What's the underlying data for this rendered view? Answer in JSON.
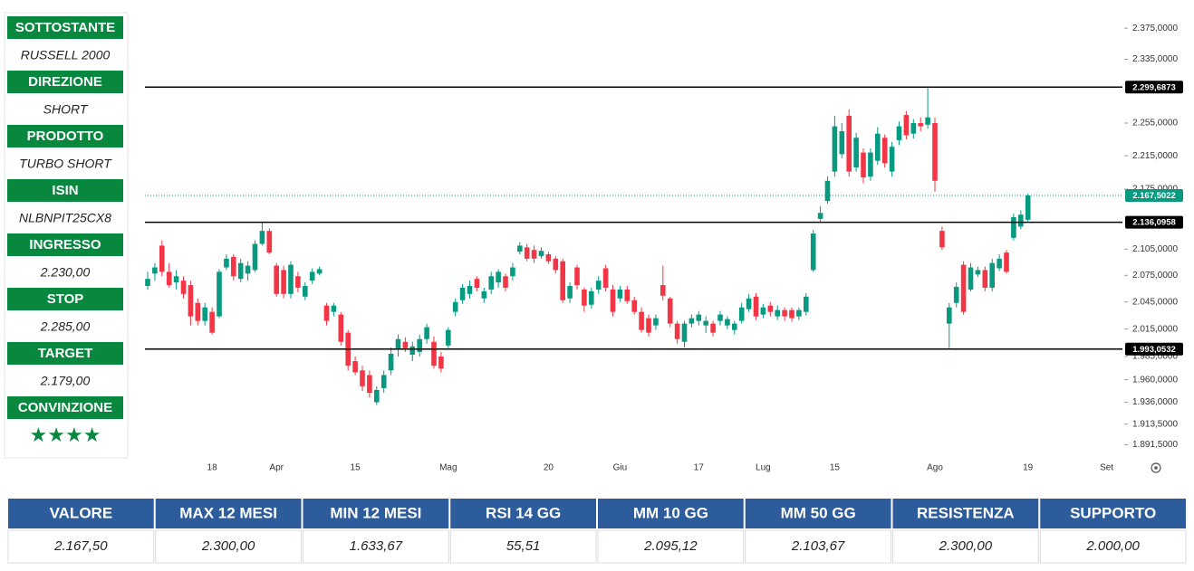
{
  "panel": [
    {
      "label": "SOTTOSTANTE",
      "value": "RUSSELL 2000"
    },
    {
      "label": "DIREZIONE",
      "value": "SHORT"
    },
    {
      "label": "PRODOTTO",
      "value": "TURBO SHORT"
    },
    {
      "label": "ISIN",
      "value": "NLBNPIT25CX8"
    },
    {
      "label": "INGRESSO",
      "value": "2.230,00"
    },
    {
      "label": "STOP",
      "value": "2.285,00"
    },
    {
      "label": "TARGET",
      "value": "2.179,00"
    },
    {
      "label": "CONVINZIONE",
      "value": "★★★★"
    }
  ],
  "chart_data": {
    "type": "candlestick",
    "up_color": "#089981",
    "down_color": "#f23645",
    "log_scale": true,
    "ylim": [
      1879,
      2394
    ],
    "yticks": [
      {
        "value": 2375,
        "label": "2.375,0000"
      },
      {
        "value": 2335,
        "label": "2.335,0000"
      },
      {
        "value": 2255,
        "label": "2.255,0000"
      },
      {
        "value": 2215,
        "label": "2.215,0000"
      },
      {
        "value": 2175,
        "label": "2.175,0000"
      },
      {
        "value": 2105,
        "label": "2.105,0000"
      },
      {
        "value": 2075,
        "label": "2.075,0000"
      },
      {
        "value": 2045,
        "label": "2.045,0000"
      },
      {
        "value": 2015,
        "label": "2.015,0000"
      },
      {
        "value": 1985,
        "label": "1.985,0000"
      },
      {
        "value": 1960,
        "label": "1.960,0000"
      },
      {
        "value": 1936,
        "label": "1.936,0000"
      },
      {
        "value": 1913,
        "label": "1.913,5000"
      },
      {
        "value": 1891.5,
        "label": "1.891,5000"
      }
    ],
    "hlines": [
      {
        "value": 2299.6873,
        "label": "2.299,6873",
        "color": "#000000",
        "style": "solid"
      },
      {
        "value": 2167.5022,
        "label": "2.167,5022",
        "color": "#089981",
        "style": "dotted"
      },
      {
        "value": 2136.0958,
        "label": "2.136,0958",
        "color": "#000000",
        "style": "solid"
      },
      {
        "value": 1993.0532,
        "label": "1.993,0532",
        "color": "#000000",
        "style": "solid"
      }
    ],
    "categories": [
      null,
      null,
      null,
      null,
      null,
      null,
      null,
      null,
      null,
      "18",
      null,
      null,
      null,
      null,
      null,
      null,
      null,
      null,
      "Apr",
      null,
      null,
      null,
      null,
      null,
      null,
      null,
      null,
      null,
      null,
      "15",
      null,
      null,
      null,
      null,
      null,
      null,
      null,
      null,
      null,
      null,
      null,
      null,
      "Mag",
      null,
      null,
      null,
      null,
      null,
      null,
      null,
      null,
      null,
      null,
      null,
      null,
      null,
      "20",
      null,
      null,
      null,
      null,
      null,
      null,
      null,
      null,
      null,
      "Giu",
      null,
      null,
      null,
      null,
      null,
      null,
      null,
      null,
      null,
      null,
      "17",
      null,
      null,
      null,
      null,
      null,
      null,
      null,
      null,
      "Lug",
      null,
      null,
      null,
      null,
      null,
      null,
      null,
      null,
      null,
      "15",
      null,
      null,
      null,
      null,
      null,
      null,
      null,
      null,
      null,
      null,
      null,
      null,
      null,
      "Ago",
      null,
      null,
      null,
      null,
      null,
      null,
      null,
      null,
      null,
      null,
      null,
      null,
      "19",
      null,
      null,
      null,
      null,
      null,
      null,
      null,
      null,
      null,
      null,
      "Set",
      null,
      null
    ],
    "candles": [
      [
        2063,
        2079,
        2059,
        2071
      ],
      [
        2077,
        2089,
        2069,
        2084
      ],
      [
        2109,
        2115,
        2074,
        2079
      ],
      [
        2079,
        2089,
        2061,
        2064
      ],
      [
        2067,
        2081,
        2059,
        2074
      ],
      [
        2069,
        2074,
        2049,
        2054
      ],
      [
        2064,
        2069,
        2019,
        2029
      ],
      [
        2044,
        2049,
        2019,
        2024
      ],
      [
        2024,
        2044,
        2019,
        2039
      ],
      [
        2034,
        2039,
        2009,
        2011
      ],
      [
        2029,
        2082,
        2027,
        2079
      ],
      [
        2084,
        2099,
        2081,
        2094
      ],
      [
        2096,
        2099,
        2069,
        2074
      ],
      [
        2071,
        2094,
        2067,
        2089
      ],
      [
        2077,
        2091,
        2069,
        2086
      ],
      [
        2081,
        2115,
        2079,
        2111
      ],
      [
        2111,
        2136,
        2109,
        2126
      ],
      [
        2126,
        2129,
        2099,
        2101
      ],
      [
        2086,
        2089,
        2051,
        2054
      ],
      [
        2081,
        2086,
        2049,
        2054
      ],
      [
        2054,
        2091,
        2049,
        2087
      ],
      [
        2074,
        2079,
        2056,
        2061
      ],
      [
        2051,
        2067,
        2047,
        2063
      ],
      [
        2069,
        2083,
        2065,
        2079
      ],
      [
        2077,
        2085,
        2075,
        2082
      ],
      [
        2041,
        2044,
        2019,
        2024
      ],
      [
        2034,
        2044,
        2029,
        2041
      ],
      [
        2031,
        2034,
        1997,
        2001
      ],
      [
        2011,
        2014,
        1970,
        1975
      ],
      [
        1980,
        1985,
        1965,
        1968
      ],
      [
        1970,
        1975,
        1948,
        1953
      ],
      [
        1965,
        1970,
        1941,
        1946
      ],
      [
        1936,
        1953,
        1933,
        1949
      ],
      [
        1951,
        1970,
        1946,
        1965
      ],
      [
        1970,
        1995,
        1965,
        1988
      ],
      [
        1993,
        2009,
        1985,
        2004
      ],
      [
        2001,
        2006,
        1990,
        1994
      ],
      [
        1987,
        2001,
        1980,
        1996
      ],
      [
        1990,
        2009,
        1985,
        2004
      ],
      [
        2004,
        2021,
        1999,
        2017
      ],
      [
        2001,
        2007,
        1972,
        1975
      ],
      [
        1985,
        1990,
        1968,
        1972
      ],
      [
        1997,
        2017,
        1994,
        2014
      ],
      [
        2034,
        2049,
        2029,
        2045
      ],
      [
        2047,
        2065,
        2043,
        2061
      ],
      [
        2054,
        2069,
        2049,
        2063
      ],
      [
        2071,
        2074,
        2057,
        2061
      ],
      [
        2049,
        2061,
        2044,
        2057
      ],
      [
        2059,
        2079,
        2054,
        2074
      ],
      [
        2067,
        2082,
        2061,
        2079
      ],
      [
        2074,
        2077,
        2057,
        2061
      ],
      [
        2074,
        2089,
        2069,
        2084
      ],
      [
        2102,
        2113,
        2099,
        2109
      ],
      [
        2107,
        2111,
        2091,
        2094
      ],
      [
        2104,
        2109,
        2089,
        2094
      ],
      [
        2097,
        2107,
        2094,
        2103
      ],
      [
        2099,
        2102,
        2088,
        2091
      ],
      [
        2094,
        2097,
        2077,
        2081
      ],
      [
        2091,
        2094,
        2044,
        2047
      ],
      [
        2049,
        2067,
        2044,
        2063
      ],
      [
        2084,
        2087,
        2059,
        2064
      ],
      [
        2059,
        2061,
        2034,
        2041
      ],
      [
        2042,
        2061,
        2038,
        2057
      ],
      [
        2059,
        2074,
        2054,
        2069
      ],
      [
        2083,
        2087,
        2057,
        2061
      ],
      [
        2059,
        2064,
        2029,
        2034
      ],
      [
        2049,
        2063,
        2045,
        2059
      ],
      [
        2059,
        2063,
        2043,
        2046
      ],
      [
        2047,
        2051,
        2031,
        2034
      ],
      [
        2034,
        2039,
        2011,
        2014
      ],
      [
        2027,
        2031,
        2007,
        2011
      ],
      [
        2019,
        2031,
        2014,
        2027
      ],
      [
        2064,
        2086,
        2047,
        2052
      ],
      [
        2049,
        2051,
        2017,
        2021
      ],
      [
        2021,
        2024,
        1999,
        2004
      ],
      [
        2001,
        2024,
        1995,
        2021
      ],
      [
        2021,
        2031,
        2017,
        2027
      ],
      [
        2024,
        2035,
        2019,
        2031
      ],
      [
        2019,
        2029,
        2011,
        2024
      ],
      [
        2021,
        2024,
        2007,
        2011
      ],
      [
        2024,
        2035,
        2019,
        2031
      ],
      [
        2019,
        2029,
        2015,
        2026
      ],
      [
        2014,
        2024,
        2009,
        2021
      ],
      [
        2024,
        2044,
        2021,
        2039
      ],
      [
        2037,
        2054,
        2034,
        2049
      ],
      [
        2051,
        2055,
        2025,
        2029
      ],
      [
        2031,
        2043,
        2027,
        2039
      ],
      [
        2041,
        2045,
        2029,
        2034
      ],
      [
        2029,
        2041,
        2025,
        2036
      ],
      [
        2036,
        2039,
        2024,
        2029
      ],
      [
        2036,
        2039,
        2023,
        2027
      ],
      [
        2029,
        2039,
        2025,
        2036
      ],
      [
        2034,
        2055,
        2030,
        2051
      ],
      [
        2081,
        2127,
        2079,
        2123
      ],
      [
        2140,
        2155,
        2136,
        2147
      ],
      [
        2161,
        2190,
        2158,
        2185
      ],
      [
        2196,
        2264,
        2190,
        2251
      ],
      [
        2217,
        2255,
        2212,
        2245
      ],
      [
        2264,
        2272,
        2190,
        2196
      ],
      [
        2201,
        2243,
        2196,
        2237
      ],
      [
        2219,
        2224,
        2182,
        2189
      ],
      [
        2190,
        2224,
        2185,
        2219
      ],
      [
        2209,
        2250,
        2204,
        2242
      ],
      [
        2237,
        2241,
        2201,
        2206
      ],
      [
        2196,
        2232,
        2190,
        2226
      ],
      [
        2234,
        2257,
        2228,
        2251
      ],
      [
        2265,
        2270,
        2235,
        2240
      ],
      [
        2242,
        2260,
        2236,
        2255
      ],
      [
        2255,
        2262,
        2245,
        2251
      ],
      [
        2253,
        2299,
        2248,
        2262
      ],
      [
        2255,
        2262,
        2172,
        2185
      ],
      [
        2126,
        2131,
        2104,
        2107
      ],
      [
        2021,
        2044,
        1994,
        2039
      ],
      [
        2044,
        2067,
        2039,
        2062
      ],
      [
        2087,
        2091,
        2031,
        2034
      ],
      [
        2059,
        2089,
        2057,
        2084
      ],
      [
        2076,
        2085,
        2073,
        2081
      ],
      [
        2081,
        2085,
        2057,
        2061
      ],
      [
        2061,
        2094,
        2057,
        2089
      ],
      [
        2083,
        2099,
        2080,
        2094
      ],
      [
        2101,
        2104,
        2077,
        2079
      ],
      [
        2118,
        2146,
        2115,
        2142
      ],
      [
        2131,
        2150,
        2128,
        2145
      ],
      [
        2139,
        2170,
        2136,
        2167.5
      ],
      null,
      null,
      null,
      null,
      null,
      null,
      null,
      null,
      null,
      null,
      null,
      null,
      null
    ]
  },
  "table": {
    "headers": [
      "VALORE",
      "MAX 12 MESI",
      "MIN 12 MESI",
      "RSI 14 GG",
      "MM 10 GG",
      "MM 50 GG",
      "RESISTENZA",
      "SUPPORTO"
    ],
    "rows": [
      [
        "2.167,50",
        "2.300,00",
        "1.633,67",
        "55,51",
        "2.095,12",
        "2.103,67",
        "2.300,00",
        "2.000,00"
      ]
    ]
  }
}
